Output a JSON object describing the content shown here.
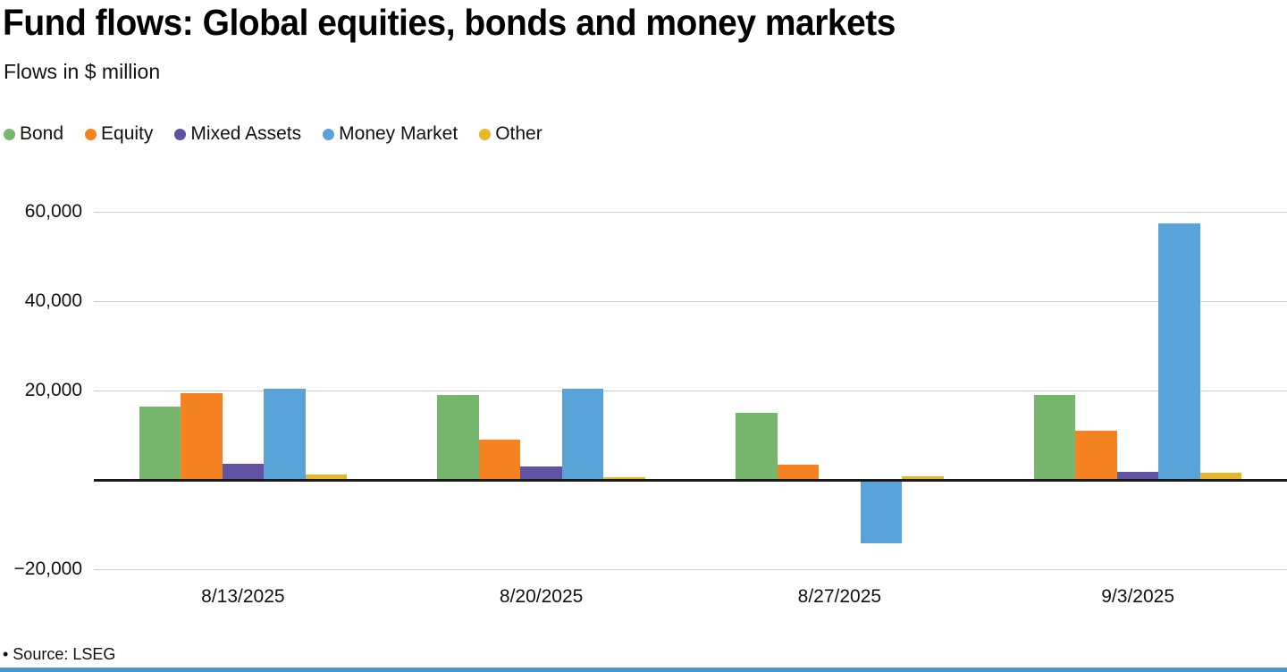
{
  "header": {
    "title": "Fund flows: Global equities, bonds and money markets",
    "subtitle": "Flows in $ million"
  },
  "footer": {
    "source": "• Source: LSEG"
  },
  "colors": {
    "grid": "#cccccc",
    "zero_axis": "#1a1a1a",
    "bottom_strip": "#4a97d2"
  },
  "chart_data": {
    "type": "bar",
    "title": "Fund flows: Global equities, bonds and money markets",
    "subtitle": "Flows in $ million",
    "xlabel": "",
    "ylabel": "Flows in $ million",
    "categories": [
      "8/13/2025",
      "8/20/2025",
      "8/27/2025",
      "9/3/2025"
    ],
    "series": [
      {
        "name": "Bond",
        "color": "#77b66d",
        "values": [
          16500,
          19000,
          15000,
          19000
        ]
      },
      {
        "name": "Equity",
        "color": "#f58220",
        "values": [
          19500,
          9000,
          3400,
          11000
        ]
      },
      {
        "name": "Mixed Assets",
        "color": "#6253a2",
        "values": [
          3600,
          3000,
          -400,
          1800
        ]
      },
      {
        "name": "Money Market",
        "color": "#5aa3d8",
        "values": [
          20500,
          20500,
          -14200,
          57500
        ]
      },
      {
        "name": "Other",
        "color": "#e8b629",
        "values": [
          1200,
          700,
          900,
          1600
        ]
      }
    ],
    "ylim": [
      -20000,
      62000
    ],
    "yticks": [
      {
        "value": 60000,
        "label": "60,000"
      },
      {
        "value": 40000,
        "label": "40,000"
      },
      {
        "value": 20000,
        "label": "20,000"
      },
      {
        "value": -20000,
        "label": "−20,000"
      }
    ],
    "grid": true,
    "legend_position": "top"
  }
}
